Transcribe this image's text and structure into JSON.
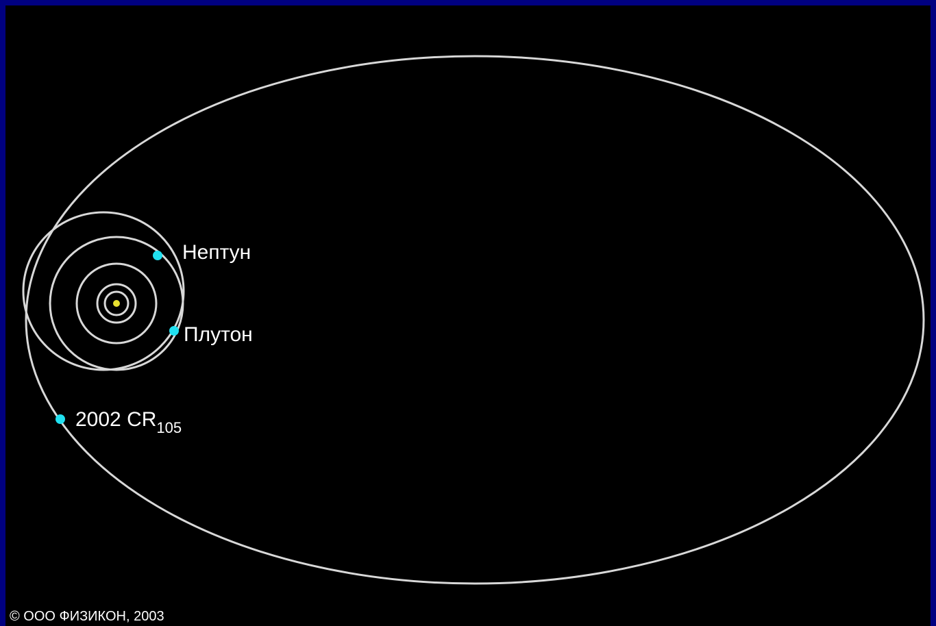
{
  "labels": [
    {
      "label": "Нептун"
    },
    {
      "label": "Плутон"
    },
    {
      "label": "2002 CR",
      "subscript": "105"
    }
  ],
  "copyright": "© ООО ФИЗИКОН, 2003"
}
